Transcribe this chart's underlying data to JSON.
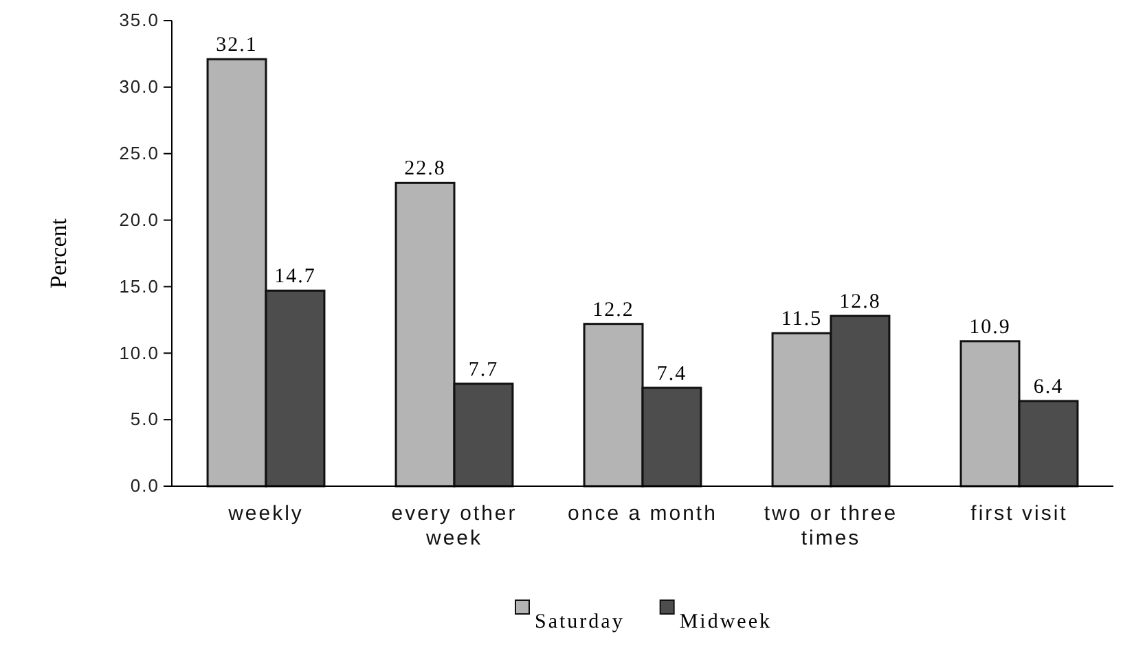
{
  "chart_data": {
    "type": "bar",
    "ylabel": "Percent",
    "categories": [
      "weekly",
      "every other week",
      "once a month",
      "two or three times",
      "first visit"
    ],
    "series": [
      {
        "name": "Saturday",
        "color": "#b4b4b4",
        "values": [
          32.1,
          22.8,
          12.2,
          11.5,
          10.9
        ]
      },
      {
        "name": "Midweek",
        "color": "#4d4d4d",
        "values": [
          14.7,
          7.7,
          7.4,
          12.8,
          6.4
        ]
      }
    ],
    "ylim": [
      0,
      35
    ],
    "yticks": [
      {
        "value": 0,
        "label": "0.0"
      },
      {
        "value": 5,
        "label": "5.0"
      },
      {
        "value": 10,
        "label": "10.0"
      },
      {
        "value": 15,
        "label": "15.0"
      },
      {
        "value": 20,
        "label": "20.0"
      },
      {
        "value": 25,
        "label": "25.0"
      },
      {
        "value": 30,
        "label": "30.0"
      },
      {
        "value": 35,
        "label": "35.0"
      }
    ],
    "data_labels": true,
    "legend": "bottom"
  }
}
